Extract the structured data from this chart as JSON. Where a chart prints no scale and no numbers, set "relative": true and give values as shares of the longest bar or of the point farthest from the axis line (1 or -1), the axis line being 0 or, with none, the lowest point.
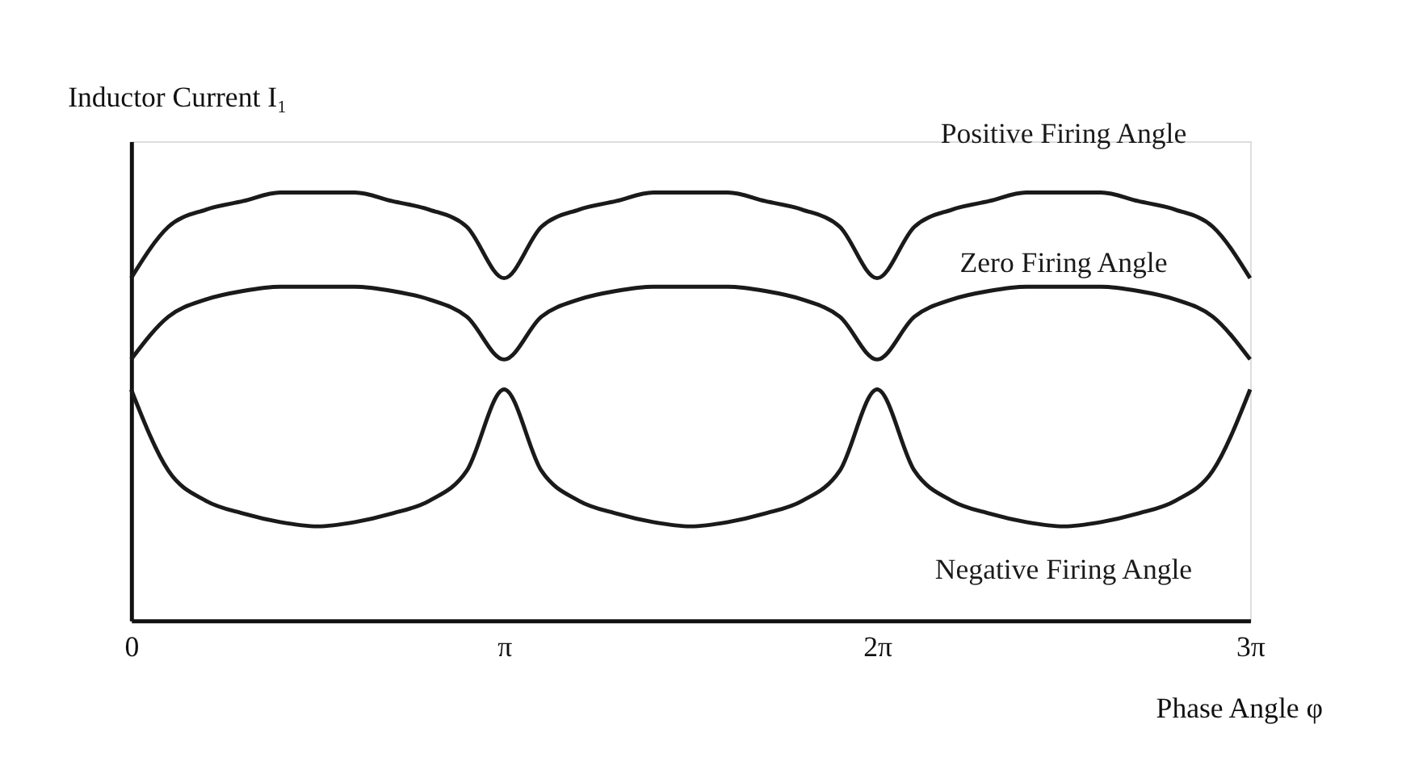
{
  "chart_data": {
    "type": "line",
    "xlabel": "Phase Angle φ",
    "ylabel": "Inductor Current I₁",
    "relative": true,
    "tick_labels": "x",
    "grid": false,
    "legend": false,
    "marker": "none",
    "line_style": "solid",
    "categories": [
      "0",
      null,
      null,
      null,
      null,
      null,
      null,
      null,
      null,
      null,
      "π",
      null,
      null,
      null,
      null,
      null,
      null,
      null,
      null,
      null,
      "2π",
      null,
      null,
      null,
      null,
      null,
      null,
      null,
      null,
      null,
      "3π"
    ],
    "series": [
      {
        "name": "Positive Firing Angle",
        "color": "#1a1a1a",
        "values": [
          0.8,
          0.92,
          0.96,
          0.98,
          1.0,
          1.0,
          1.0,
          0.98,
          0.96,
          0.92,
          0.8,
          0.92,
          0.96,
          0.98,
          1.0,
          1.0,
          1.0,
          0.98,
          0.96,
          0.92,
          0.8,
          0.92,
          0.96,
          0.98,
          1.0,
          1.0,
          1.0,
          0.98,
          0.96,
          0.92,
          0.8
        ]
      },
      {
        "name": "Zero Firing Angle",
        "color": "#1a1a1a",
        "values": [
          0.61,
          0.71,
          0.75,
          0.77,
          0.78,
          0.78,
          0.78,
          0.77,
          0.75,
          0.71,
          0.61,
          0.71,
          0.75,
          0.77,
          0.78,
          0.78,
          0.78,
          0.77,
          0.75,
          0.71,
          0.61,
          0.71,
          0.75,
          0.77,
          0.78,
          0.78,
          0.78,
          0.77,
          0.75,
          0.71,
          0.61
        ]
      },
      {
        "name": "Negative Firing Angle",
        "color": "#1a1a1a",
        "values": [
          0.54,
          0.35,
          0.28,
          0.25,
          0.23,
          0.22,
          0.23,
          0.25,
          0.28,
          0.35,
          0.54,
          0.35,
          0.28,
          0.25,
          0.23,
          0.22,
          0.23,
          0.25,
          0.28,
          0.35,
          0.54,
          0.35,
          0.28,
          0.25,
          0.23,
          0.22,
          0.23,
          0.25,
          0.28,
          0.35,
          0.54
        ]
      }
    ]
  }
}
